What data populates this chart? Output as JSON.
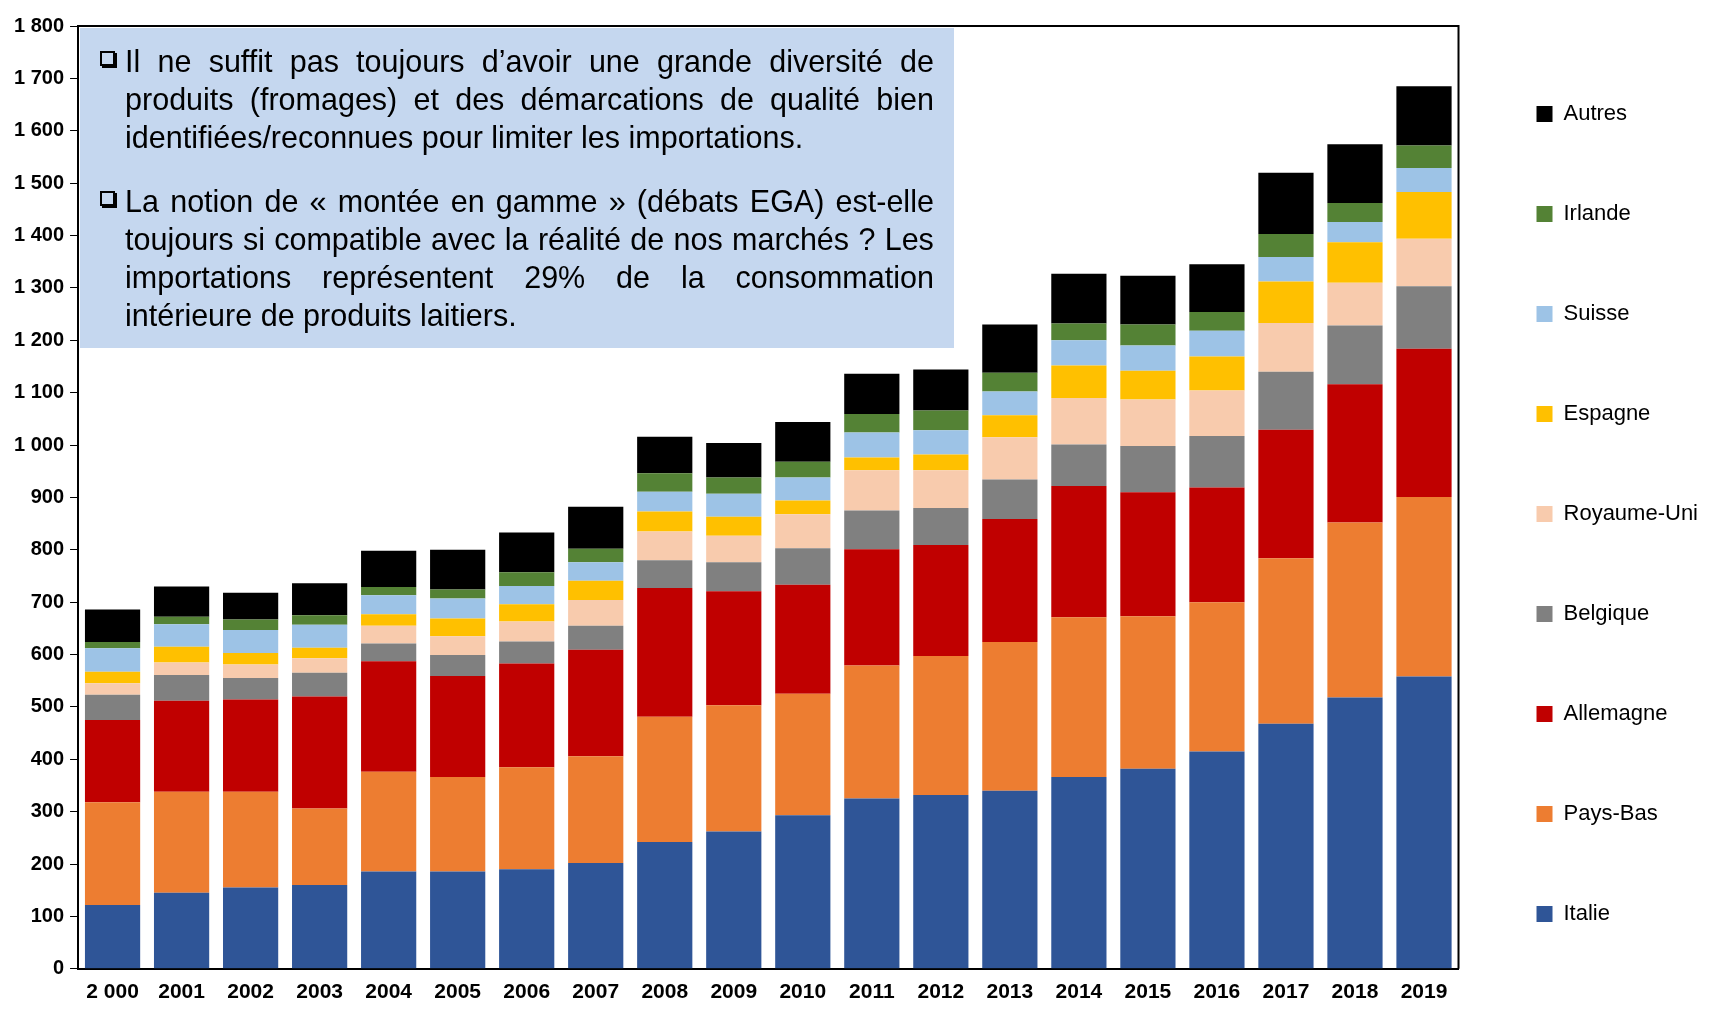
{
  "chart_data": {
    "type": "bar",
    "stacked": true,
    "legend": "right",
    "grid": false,
    "categories": [
      "2 000",
      "2001",
      "2002",
      "2003",
      "2004",
      "2005",
      "2006",
      "2007",
      "2008",
      "2009",
      "2010",
      "2011",
      "2012",
      "2013",
      "2014",
      "2015",
      "2016",
      "2017",
      "2018",
      "2019"
    ],
    "ylim": [
      0,
      1800
    ],
    "yticks": [
      0,
      100,
      200,
      300,
      400,
      500,
      600,
      700,
      800,
      900,
      {
        "value": 1000,
        "label": "1 000"
      },
      {
        "value": 1100,
        "label": "1 100"
      },
      {
        "value": 1200,
        "label": "1 200"
      },
      {
        "value": 1300,
        "label": "1 300"
      },
      {
        "value": 1400,
        "label": "1 400"
      },
      {
        "value": 1500,
        "label": "1 500"
      },
      {
        "value": 1600,
        "label": "1 600"
      },
      {
        "value": 1700,
        "label": "1 700"
      },
      {
        "value": 1800,
        "label": "1 800"
      }
    ],
    "series": [
      {
        "name": "Italie",
        "color": "#2f5597",
        "values": [
          122,
          145,
          155,
          160,
          186,
          186,
          190,
          202,
          242,
          262,
          293,
          325,
          332,
          340,
          366,
          382,
          415,
          468,
          518,
          558
        ]
      },
      {
        "name": "Pays-Bas",
        "color": "#ed7d31",
        "values": [
          196,
          193,
          183,
          146,
          190,
          180,
          195,
          204,
          239,
          241,
          232,
          254,
          265,
          284,
          305,
          291,
          285,
          316,
          334,
          343
        ]
      },
      {
        "name": "Allemagne",
        "color": "#c00000",
        "values": [
          157,
          174,
          176,
          214,
          211,
          193,
          198,
          203,
          246,
          218,
          208,
          222,
          212,
          235,
          251,
          237,
          219,
          245,
          264,
          283
        ]
      },
      {
        "name": "Belgique",
        "color": "#808080",
        "values": [
          48,
          49,
          41,
          45,
          34,
          40,
          42,
          46,
          53,
          55,
          70,
          74,
          71,
          75,
          79,
          88,
          98,
          111,
          112,
          119
        ]
      },
      {
        "name": "Royaume-Uni",
        "color": "#f8cbad",
        "values": [
          22,
          24,
          26,
          28,
          34,
          36,
          38,
          49,
          55,
          51,
          65,
          77,
          72,
          81,
          89,
          89,
          87,
          93,
          82,
          91
        ]
      },
      {
        "name": "Espagne",
        "color": "#ffc000",
        "values": [
          22,
          30,
          22,
          20,
          22,
          34,
          33,
          37,
          38,
          36,
          26,
          24,
          30,
          42,
          62,
          55,
          65,
          79,
          77,
          89
        ]
      },
      {
        "name": "Suisse",
        "color": "#9dc3e6",
        "values": [
          45,
          43,
          44,
          44,
          36,
          38,
          35,
          35,
          38,
          44,
          44,
          48,
          46,
          45,
          48,
          48,
          49,
          47,
          39,
          46
        ]
      },
      {
        "name": "Irlande",
        "color": "#548235",
        "values": [
          12,
          14,
          20,
          18,
          16,
          17,
          26,
          26,
          35,
          31,
          30,
          35,
          38,
          36,
          32,
          40,
          36,
          44,
          36,
          43
        ]
      },
      {
        "name": "Autres",
        "color": "#000000",
        "values": [
          62,
          58,
          51,
          61,
          69,
          76,
          76,
          80,
          70,
          66,
          76,
          77,
          78,
          92,
          95,
          93,
          91,
          117,
          112,
          113
        ]
      }
    ],
    "annotations": [
      "Il ne suffit pas toujours d’avoir une grande diversité de produits (fromages) et des démarcations de qualité bien identifiées/reconnues pour limiter les importations.",
      "La notion de « montée en gamme » (débats EGA) est-elle toujours si compatible avec la réalité de nos marchés ? Les importations représentent 29% de la consommation intérieure de produits laitiers."
    ]
  }
}
